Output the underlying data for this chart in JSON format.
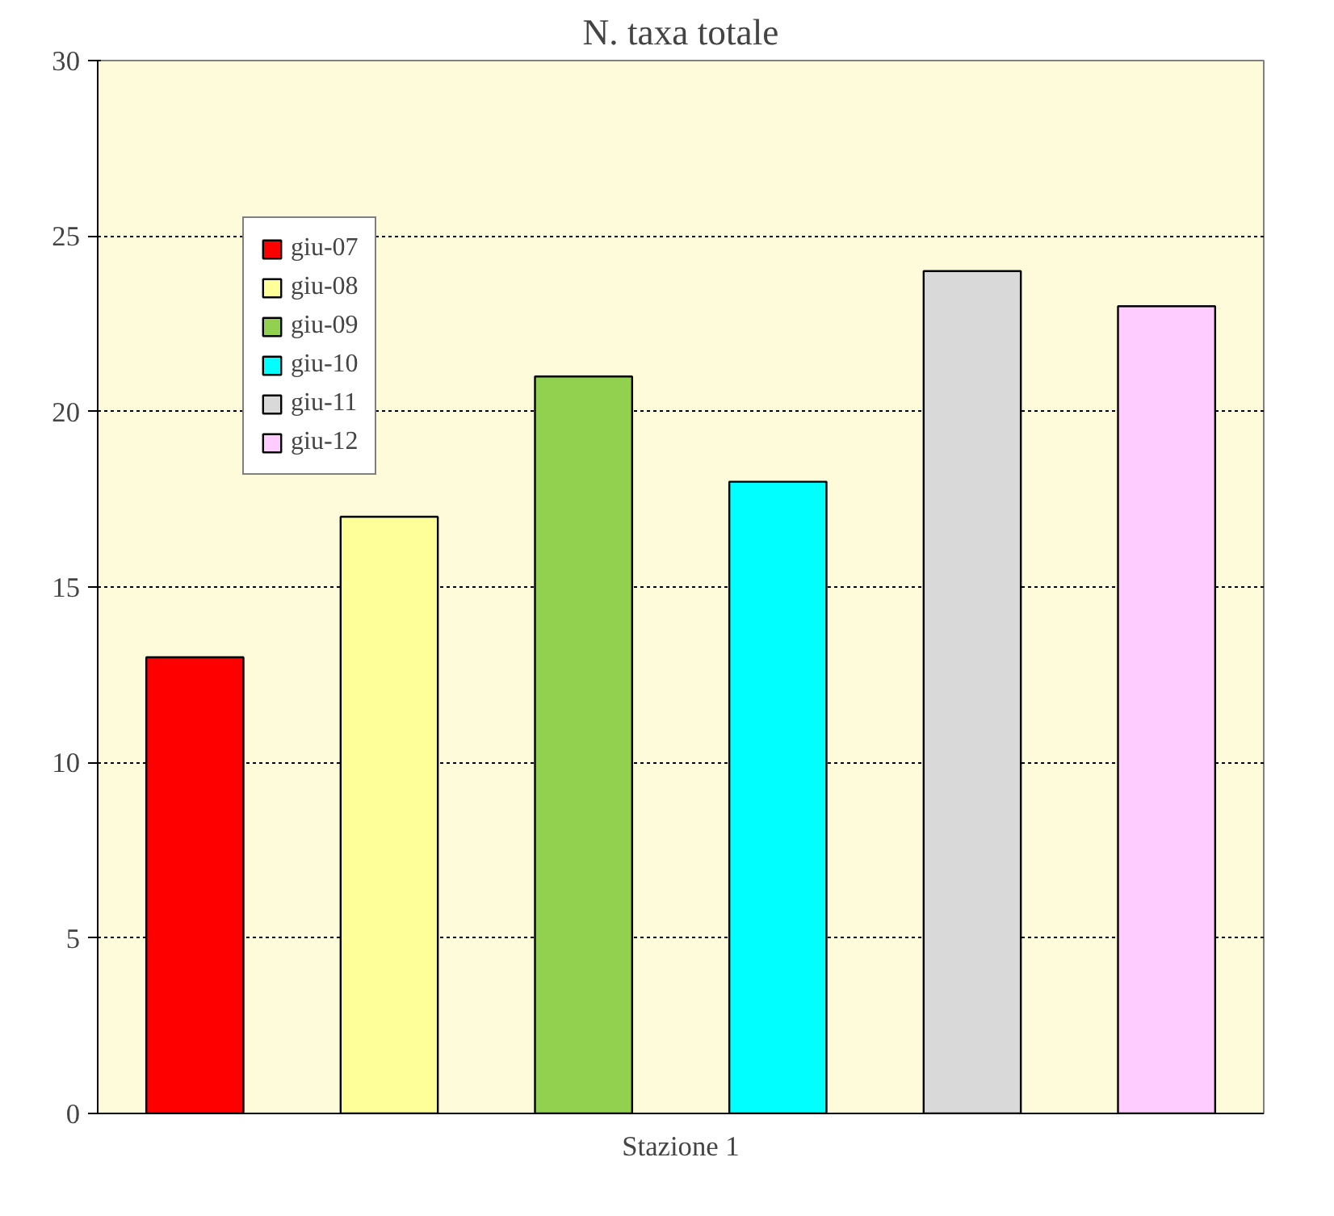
{
  "chart_data": {
    "type": "bar",
    "title": "N. taxa totale",
    "categories": [
      "Stazione 1"
    ],
    "series": [
      {
        "name": "giu-07",
        "color": "#ff0000",
        "values": [
          13
        ]
      },
      {
        "name": "giu-08",
        "color": "#ffff99",
        "values": [
          17
        ]
      },
      {
        "name": "giu-09",
        "color": "#92d050",
        "values": [
          21
        ]
      },
      {
        "name": "giu-10",
        "color": "#00ffff",
        "values": [
          18
        ]
      },
      {
        "name": "giu-11",
        "color": "#d9d9d9",
        "values": [
          24
        ]
      },
      {
        "name": "giu-12",
        "color": "#ffccff",
        "values": [
          23
        ]
      }
    ],
    "ylim": [
      0,
      30
    ],
    "yticks": [
      0,
      5,
      10,
      15,
      20,
      25,
      30
    ],
    "grid": "y",
    "legend": "top left"
  }
}
